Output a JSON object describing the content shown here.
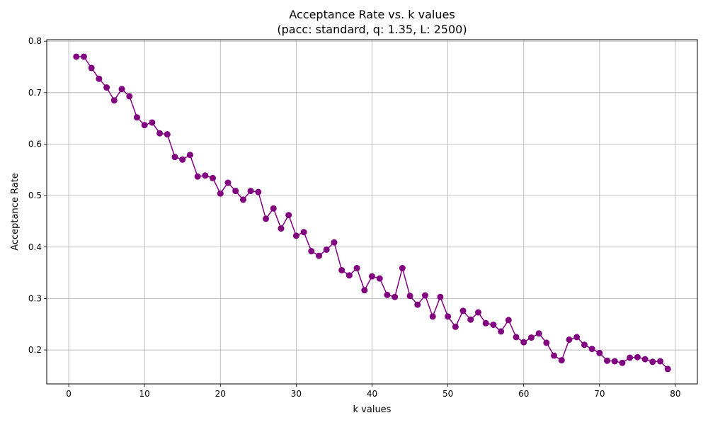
{
  "chart_data": {
    "type": "line",
    "title": "Acceptance Rate vs. k values",
    "subtitle": "(pacc: standard, q: 1.35, L: 2500)",
    "xlabel": "k values",
    "ylabel": "Acceptance Rate",
    "xlim": [
      -2.9,
      82.9
    ],
    "ylim": [
      0.134,
      0.803
    ],
    "xticks": [
      0,
      10,
      20,
      30,
      40,
      50,
      60,
      70,
      80
    ],
    "yticks": [
      0.2,
      0.3,
      0.4,
      0.5,
      0.6,
      0.7,
      0.8
    ],
    "xtick_labels": [
      "0",
      "10",
      "20",
      "30",
      "40",
      "50",
      "60",
      "70",
      "80"
    ],
    "ytick_labels": [
      "0.2",
      "0.3",
      "0.4",
      "0.5",
      "0.6",
      "0.7",
      "0.8"
    ],
    "grid": true,
    "color": "#800080",
    "series": [
      {
        "x": [
          1,
          2,
          3,
          4,
          5,
          6,
          7,
          8,
          9,
          10,
          11,
          12,
          13,
          14,
          15,
          16,
          17,
          18,
          19,
          20,
          21,
          22,
          23,
          24,
          25,
          26,
          27,
          28,
          29,
          30,
          31,
          32,
          33,
          34,
          35,
          36,
          37,
          38,
          39,
          40,
          41,
          42,
          43,
          44,
          45,
          46,
          47,
          48,
          49,
          50,
          51,
          52,
          53,
          54,
          55,
          56,
          57,
          58,
          59,
          60,
          61,
          62,
          63,
          64,
          65,
          66,
          67,
          68,
          69,
          70,
          71,
          72,
          73,
          74,
          75,
          76,
          77,
          78,
          79
        ],
        "y": [
          0.77,
          0.77,
          0.748,
          0.727,
          0.71,
          0.685,
          0.707,
          0.693,
          0.652,
          0.637,
          0.642,
          0.621,
          0.619,
          0.575,
          0.57,
          0.579,
          0.537,
          0.539,
          0.534,
          0.504,
          0.525,
          0.509,
          0.492,
          0.509,
          0.507,
          0.455,
          0.475,
          0.436,
          0.462,
          0.422,
          0.429,
          0.392,
          0.383,
          0.395,
          0.409,
          0.355,
          0.345,
          0.359,
          0.316,
          0.343,
          0.339,
          0.307,
          0.303,
          0.359,
          0.305,
          0.288,
          0.306,
          0.265,
          0.303,
          0.265,
          0.245,
          0.276,
          0.259,
          0.273,
          0.252,
          0.249,
          0.236,
          0.258,
          0.225,
          0.215,
          0.224,
          0.232,
          0.214,
          0.189,
          0.18,
          0.22,
          0.225,
          0.21,
          0.202,
          0.194,
          0.179,
          0.178,
          0.175,
          0.185,
          0.186,
          0.182,
          0.177,
          0.178,
          0.163
        ]
      }
    ]
  }
}
